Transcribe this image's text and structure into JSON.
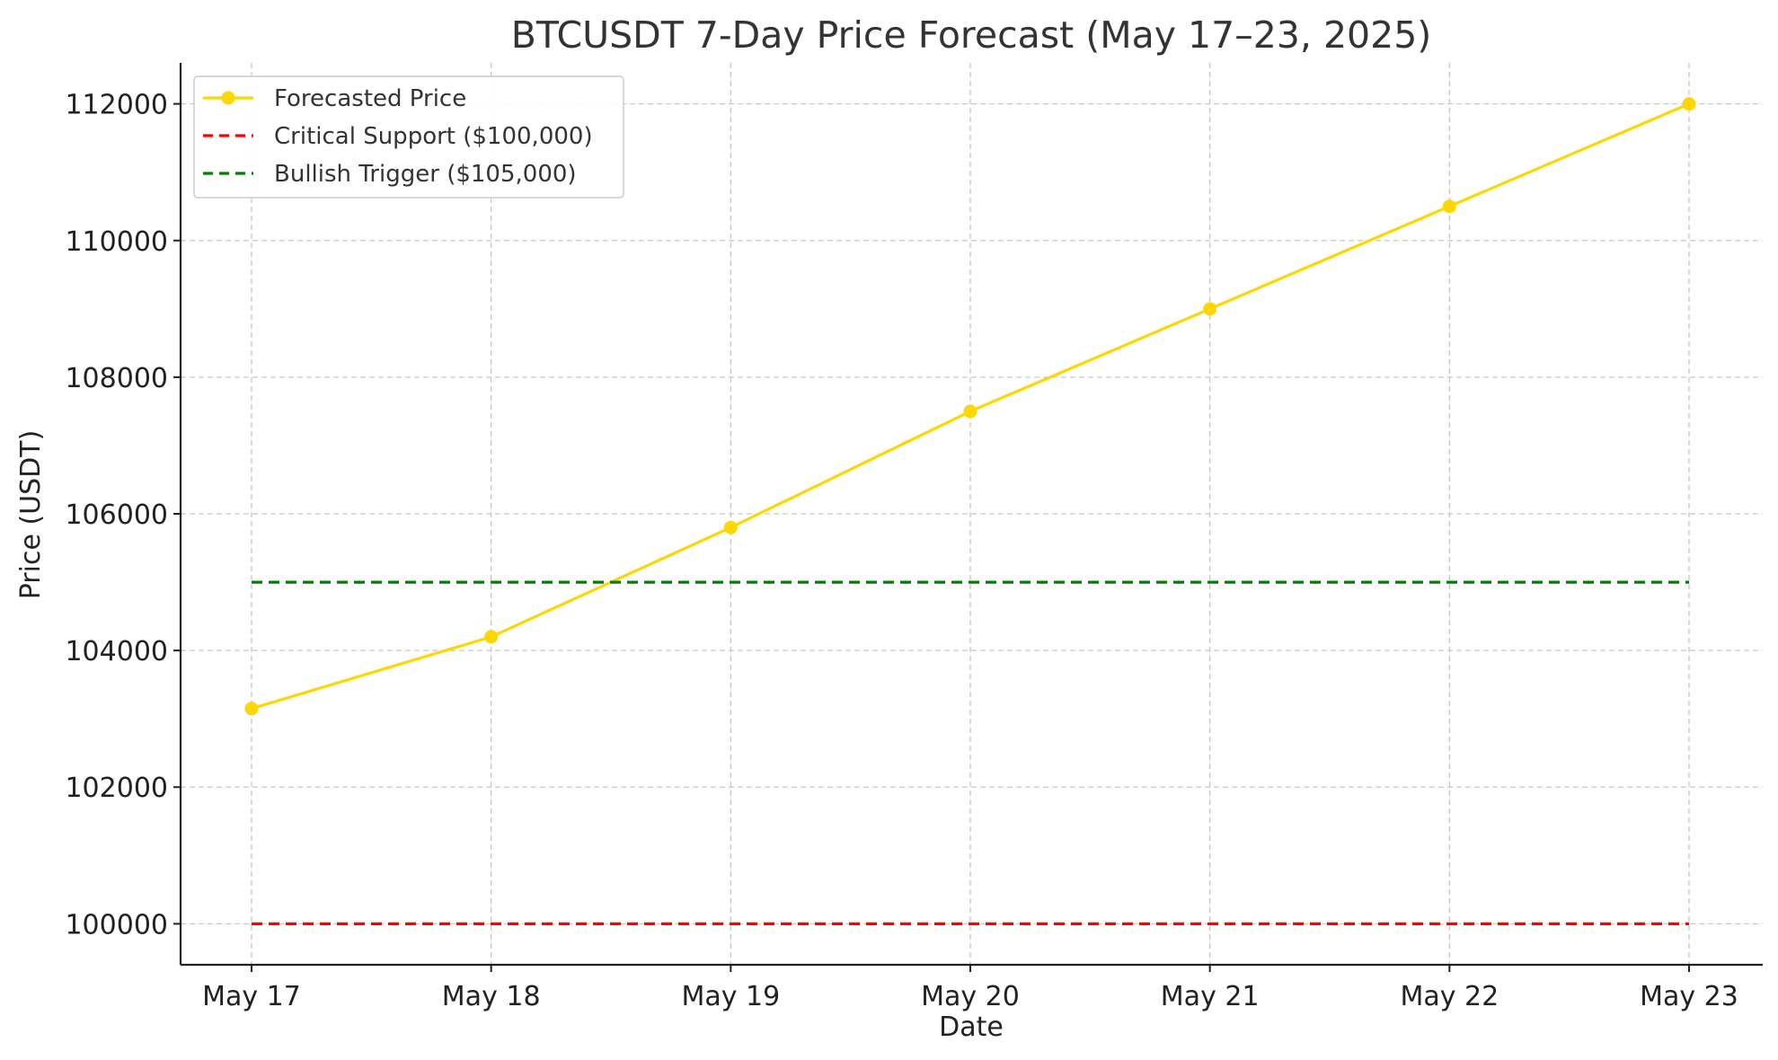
{
  "chart_data": {
    "type": "line",
    "title": "BTCUSDT 7-Day Price Forecast (May 17–23, 2025)",
    "xlabel": "Date",
    "ylabel": "Price (USDT)",
    "categories": [
      "May 17",
      "May 18",
      "May 19",
      "May 20",
      "May 21",
      "May 22",
      "May 23"
    ],
    "y_ticks": [
      100000,
      102000,
      104000,
      106000,
      108000,
      110000,
      112000
    ],
    "ylim": [
      99400,
      112600
    ],
    "grid": true,
    "legend_position": "top-left",
    "series": [
      {
        "name": "Forecasted Price",
        "values": [
          103150,
          104200,
          105800,
          107500,
          109000,
          110500,
          112000
        ],
        "color": "#FFD700",
        "style": "solid",
        "marker": "circle"
      },
      {
        "name": "Critical Support ($100,000)",
        "values": [
          100000,
          100000,
          100000,
          100000,
          100000,
          100000,
          100000
        ],
        "color": "#FF0000",
        "style": "dashed"
      },
      {
        "name": "Bullish Trigger ($105,000)",
        "values": [
          105000,
          105000,
          105000,
          105000,
          105000,
          105000,
          105000
        ],
        "color": "#008000",
        "style": "dashed"
      }
    ]
  }
}
